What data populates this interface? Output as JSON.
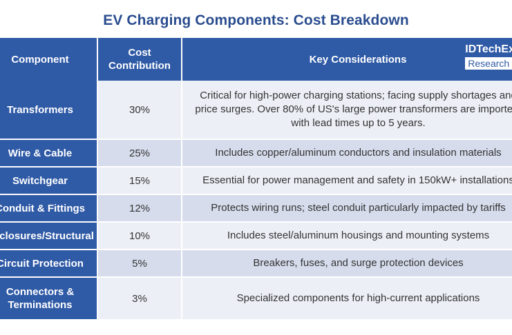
{
  "title": "EV Charging Components: Cost Breakdown",
  "logo": {
    "line1": "IDTechEx",
    "line2": "Research"
  },
  "headers": {
    "component": "Component",
    "cost_line1": "Cost",
    "cost_line2": "Contribution",
    "key": "Key Considerations"
  },
  "rows": [
    {
      "component_line1": "Transformers",
      "component_line2": "",
      "cost": "30%",
      "key_lines": [
        "Critical for high-power charging stations; facing supply shortages and",
        "price surges. Over 80% of US's large power transformers are imported,",
        "with lead times up to 5 years."
      ]
    },
    {
      "component_line1": "Wire & Cable",
      "component_line2": "",
      "cost": "25%",
      "key_lines": [
        "Includes copper/aluminum conductors and insulation materials",
        "",
        ""
      ]
    },
    {
      "component_line1": "Switchgear",
      "component_line2": "",
      "cost": "15%",
      "key_lines": [
        "Essential for power management and safety in 150kW+ installations",
        "",
        ""
      ]
    },
    {
      "component_line1": "Conduit & Fittings",
      "component_line2": "",
      "cost": "12%",
      "key_lines": [
        "Protects wiring runs; steel conduit particularly impacted by tariffs",
        "",
        ""
      ]
    },
    {
      "component_line1": "Enclosures/Structural",
      "component_line2": "",
      "cost": "10%",
      "key_lines": [
        "Includes steel/aluminum housings and mounting systems",
        "",
        ""
      ]
    },
    {
      "component_line1": "Circuit Protection",
      "component_line2": "",
      "cost": "5%",
      "key_lines": [
        "Breakers, fuses, and surge protection devices",
        "",
        ""
      ]
    },
    {
      "component_line1": "Connectors &",
      "component_line2": "Terminations",
      "cost": "3%",
      "key_lines": [
        "Specialized components for high-current applications",
        "",
        ""
      ]
    }
  ],
  "colors": {
    "title": "#2a4d8f",
    "header_bg": "#2f5aa6",
    "row_light": "#eceff6",
    "row_dark": "#d6dcec"
  }
}
